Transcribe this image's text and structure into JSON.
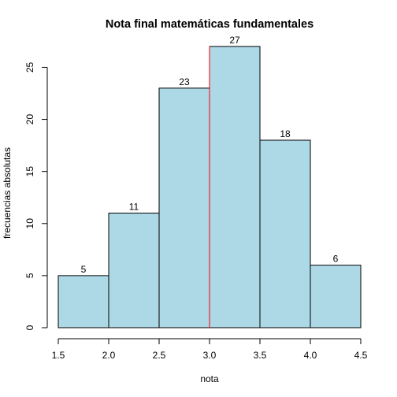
{
  "chart_data": {
    "type": "bar",
    "title": "Nota final matemáticas fundamentales",
    "xlabel": "nota",
    "ylabel": "frecuencias absolutas",
    "bins": [
      {
        "from": 1.5,
        "to": 2.0,
        "value": 5
      },
      {
        "from": 2.0,
        "to": 2.5,
        "value": 11
      },
      {
        "from": 2.5,
        "to": 3.0,
        "value": 23
      },
      {
        "from": 3.0,
        "to": 3.5,
        "value": 27
      },
      {
        "from": 3.5,
        "to": 4.0,
        "value": 18
      },
      {
        "from": 4.0,
        "to": 4.5,
        "value": 6
      }
    ],
    "data_labels": [
      "5",
      "11",
      "23",
      "27",
      "18",
      "6"
    ],
    "x_ticks": [
      "1.5",
      "2.0",
      "2.5",
      "3.0",
      "3.5",
      "4.0",
      "4.5"
    ],
    "x_tick_values": [
      1.5,
      2.0,
      2.5,
      3.0,
      3.5,
      4.0,
      4.5
    ],
    "y_ticks": [
      "0",
      "5",
      "10",
      "15",
      "20",
      "25"
    ],
    "y_tick_values": [
      0,
      5,
      10,
      15,
      20,
      25
    ],
    "xlim": [
      1.5,
      4.5
    ],
    "ylim": [
      0,
      27
    ],
    "reference_line": {
      "x": 3.0,
      "color": "#ff0000"
    },
    "bar_color": "#add8e6",
    "grid": false
  }
}
